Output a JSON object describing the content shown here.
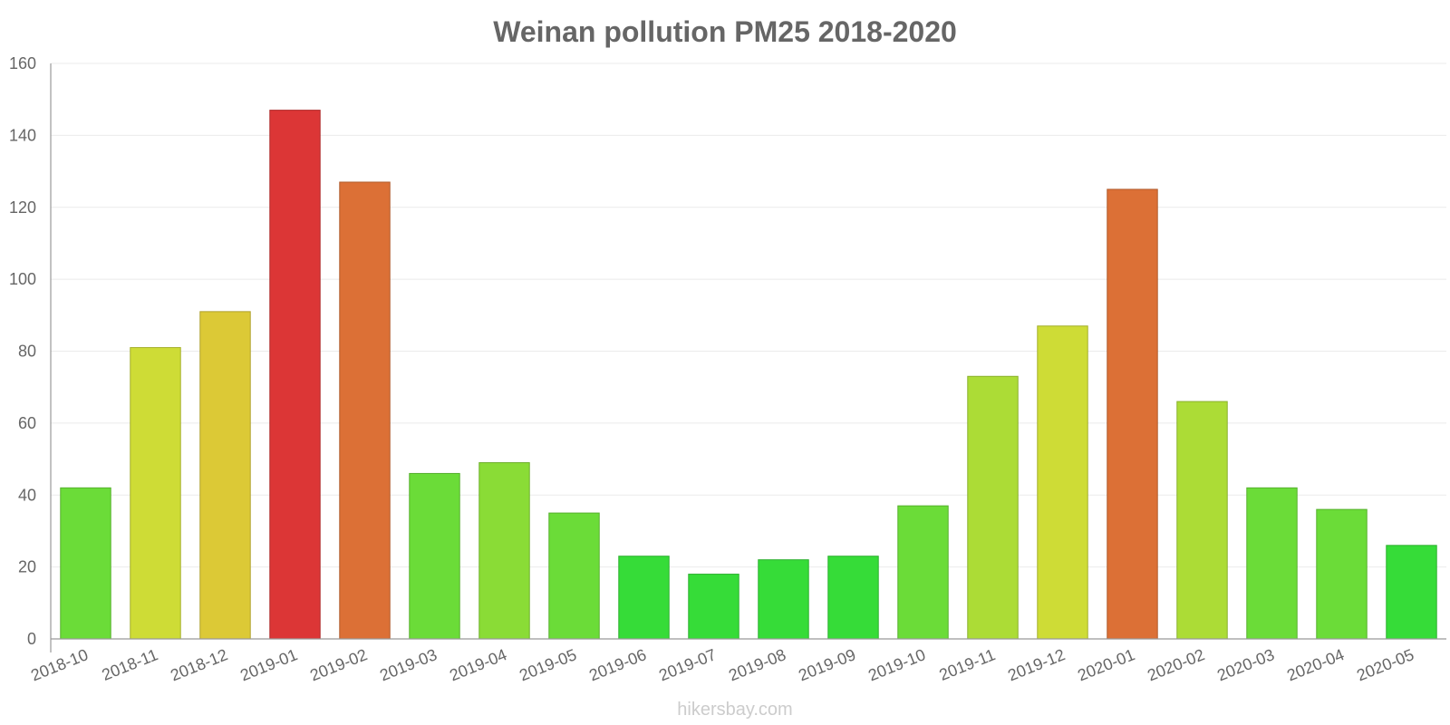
{
  "chart_data": {
    "type": "bar",
    "title": "Weinan pollution PM25 2018-2020",
    "xlabel": "",
    "ylabel": "",
    "ylim": [
      0,
      160
    ],
    "yticks": [
      0,
      20,
      40,
      60,
      80,
      100,
      120,
      140,
      160
    ],
    "categories": [
      "2018-10",
      "2018-11",
      "2018-12",
      "2019-01",
      "2019-02",
      "2019-03",
      "2019-04",
      "2019-05",
      "2019-06",
      "2019-07",
      "2019-08",
      "2019-09",
      "2019-10",
      "2019-11",
      "2019-12",
      "2020-01",
      "2020-02",
      "2020-03",
      "2020-04",
      "2020-05"
    ],
    "values": [
      42,
      81,
      91,
      147,
      127,
      46,
      49,
      35,
      23,
      18,
      22,
      23,
      37,
      73,
      87,
      125,
      66,
      42,
      36,
      26
    ],
    "colors": [
      "#6bdc38",
      "#cedc36",
      "#dcc936",
      "#dc3636",
      "#dc7036",
      "#6bdc38",
      "#8adc36",
      "#6bdc38",
      "#36dc38",
      "#36dc38",
      "#36dc38",
      "#36dc38",
      "#6bdc38",
      "#acdc36",
      "#cedc36",
      "#dc7036",
      "#acdc36",
      "#6bdc38",
      "#6bdc38",
      "#36dc38"
    ],
    "grid": true,
    "legend": "none"
  },
  "watermark": "hikersbay.com"
}
